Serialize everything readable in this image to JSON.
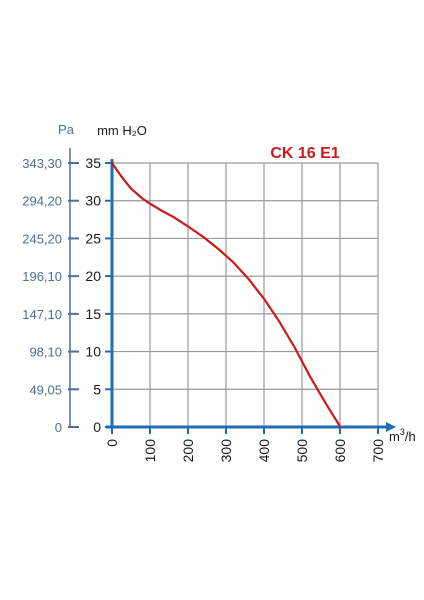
{
  "chart_data": {
    "type": "line",
    "title": "CK 16 E1",
    "xlabel": "m³/h",
    "xlabel_base": "m",
    "xlabel_sup": "3",
    "xlabel_suffix": "/h",
    "ylabel": "mm H₂O",
    "ylabel_secondary": "Pa",
    "xlim": [
      0,
      700
    ],
    "ylim": [
      0,
      35
    ],
    "x_ticks": [
      "0",
      "100",
      "200",
      "300",
      "400",
      "500",
      "600",
      "700"
    ],
    "y_ticks": [
      "0",
      "5",
      "10",
      "15",
      "20",
      "25",
      "30",
      "35"
    ],
    "y_ticks_secondary": [
      "0",
      "49,05",
      "98,10",
      "147,10",
      "196,10",
      "245,20",
      "294,20",
      "343,30"
    ],
    "grid": true,
    "series": [
      {
        "x": [
          0,
          25,
          50,
          80,
          100,
          130,
          160,
          200,
          240,
          280,
          320,
          360,
          400,
          440,
          480,
          520,
          550,
          570,
          585,
          595,
          600
        ],
        "y": [
          35,
          33.2,
          31.6,
          30.3,
          29.6,
          28.7,
          27.9,
          26.6,
          25.2,
          23.6,
          21.8,
          19.6,
          17.0,
          14.0,
          10.6,
          6.8,
          4.2,
          2.5,
          1.3,
          0.5,
          0
        ]
      }
    ],
    "colors": {
      "curve": "#cc1a1a",
      "title": "#cc1a1a",
      "primary_axis": "#1e6eb4",
      "secondary_axis": "#4e6d9c",
      "grid": "#9a9a9a",
      "text": "#1a1a1a"
    }
  }
}
